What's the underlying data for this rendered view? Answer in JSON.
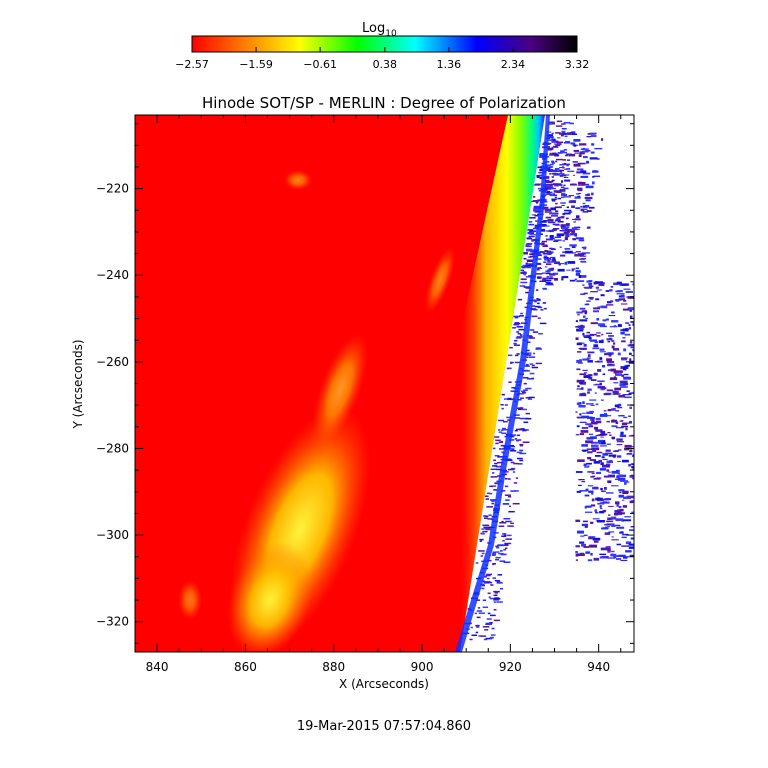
{
  "chart_data": {
    "type": "heatmap",
    "title": "Hinode SOT/SP - MERLIN : Degree of Polarization",
    "xlabel": "X (Arcseconds)",
    "ylabel": "Y (Arcseconds)",
    "xlim": [
      835,
      948
    ],
    "ylim": [
      -327,
      -203
    ],
    "x_ticks": [
      840,
      860,
      880,
      900,
      920,
      940
    ],
    "y_ticks": [
      -220,
      -240,
      -260,
      -280,
      -300,
      -320
    ],
    "x_tick_labels": [
      "840",
      "860",
      "880",
      "900",
      "920",
      "940"
    ],
    "y_tick_labels": [
      "−220",
      "−240",
      "−260",
      "−280",
      "−300",
      "−320"
    ],
    "colorbar": {
      "title": "Log",
      "title_subscript": "10",
      "min": -2.57,
      "max": 3.32,
      "tick_values": [
        -2.57,
        -1.59,
        -0.61,
        0.38,
        1.36,
        2.34,
        3.32
      ],
      "tick_labels": [
        "−2.57",
        "−1.59",
        "−0.61",
        "0.38",
        "1.36",
        "2.34",
        "3.32"
      ],
      "colormap": [
        "#ff0000",
        "#ff8000",
        "#ffff00",
        "#00ff00",
        "#00ffff",
        "#0000ff",
        "#4b0082",
        "#000000"
      ]
    },
    "grid": false,
    "legend": "none"
  },
  "footer": {
    "timestamp": "19-Mar-2015 07:57:04.860"
  }
}
